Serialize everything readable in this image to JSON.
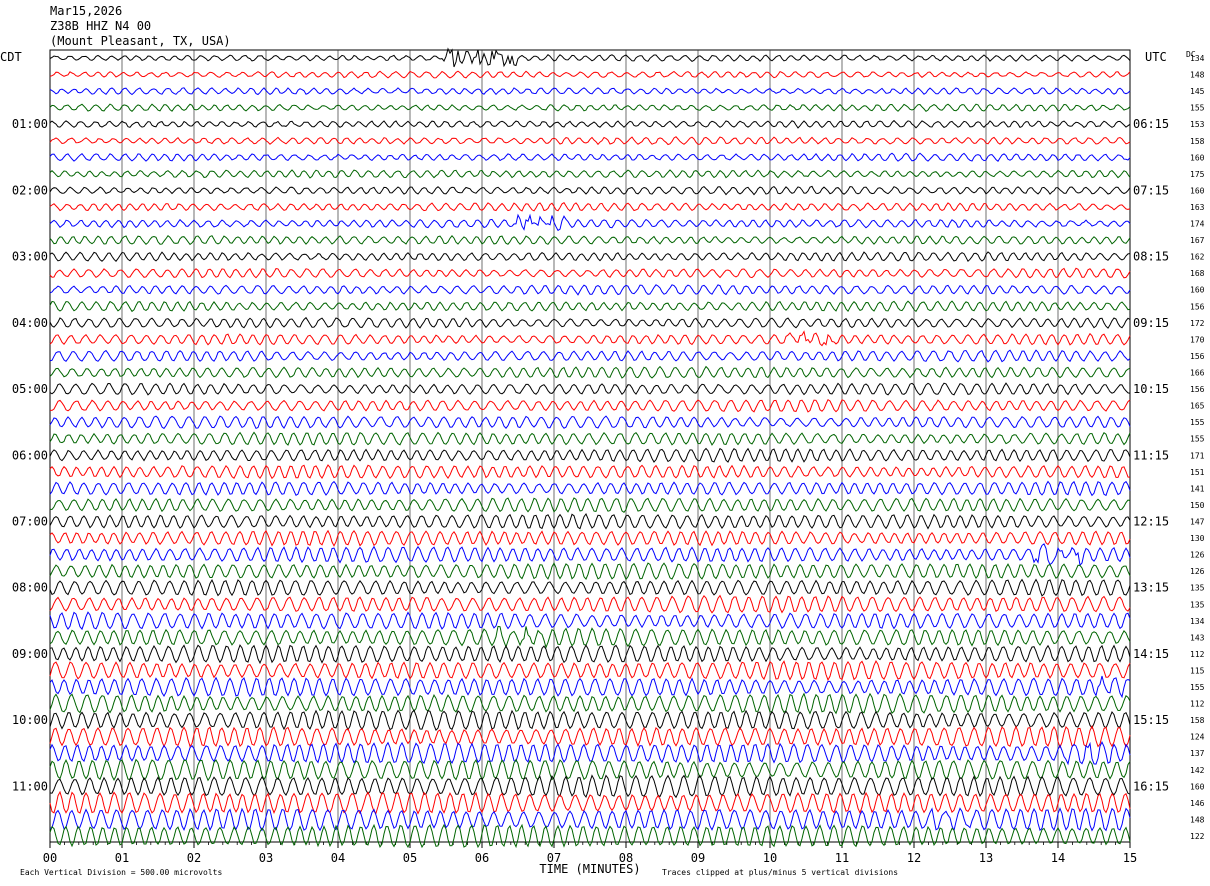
{
  "header": {
    "date": "Mar15,2026",
    "station": "Z38B HHZ N4 00",
    "location": "(Mount Pleasant, TX, USA)"
  },
  "chart_data": {
    "type": "line",
    "subtype": "helicorder",
    "left_zone": "CDT",
    "right_zone": "UTC",
    "dc_label": "DC",
    "left_time_labels": [
      "01:00",
      "02:00",
      "03:00",
      "04:00",
      "05:00",
      "06:00",
      "07:00",
      "08:00",
      "09:00",
      "10:00",
      "11:00"
    ],
    "right_time_labels": [
      "06:15",
      "07:15",
      "08:15",
      "09:15",
      "10:15",
      "11:15",
      "12:15",
      "13:15",
      "14:15",
      "15:15",
      "16:15"
    ],
    "x_ticks": [
      "00",
      "01",
      "02",
      "03",
      "04",
      "05",
      "06",
      "07",
      "08",
      "09",
      "10",
      "11",
      "12",
      "13",
      "14",
      "15"
    ],
    "xlabel": "TIME (MINUTES)",
    "xlim": [
      0,
      15
    ],
    "dc_offsets": [
      "134",
      "148",
      "145",
      "155",
      "153",
      "158",
      "160",
      "175",
      "160",
      "163",
      "174",
      "167",
      "162",
      "168",
      "160",
      "156",
      "172",
      "170",
      "156",
      "166",
      "156",
      "165",
      "155",
      "155",
      "171",
      "151",
      "141",
      "150",
      "147",
      "130",
      "126",
      "126",
      "135",
      "135",
      "134",
      "143",
      "112",
      "115",
      "155",
      "112",
      "158",
      "124",
      "137",
      "142",
      "160",
      "146",
      "148",
      "122"
    ],
    "trace_colors": [
      "#000000",
      "#ff0000",
      "#0000ff",
      "#006400"
    ],
    "grid": true,
    "footer_left": "Each Vertical Division =  500.00 microvolts",
    "footer_right": "Traces clipped at plus/minus 5 vertical divisions"
  }
}
